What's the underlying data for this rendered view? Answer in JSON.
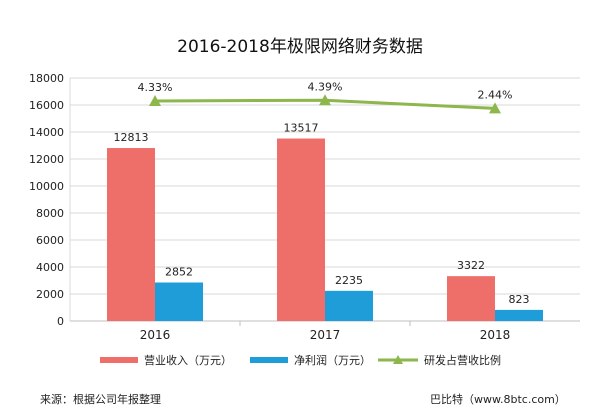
{
  "chart_data": {
    "type": "bar",
    "title": "2016-2018年极限网络财务数据",
    "categories": [
      "2016",
      "2017",
      "2018"
    ],
    "ylim": [
      0,
      18000
    ],
    "yticks": [
      0,
      2000,
      4000,
      6000,
      8000,
      10000,
      12000,
      14000,
      16000,
      18000
    ],
    "series": [
      {
        "name": "营业收入（万元）",
        "type": "bar",
        "color": "#EE6F6A",
        "values": [
          12813,
          13517,
          3322
        ],
        "labels": [
          "12813",
          "13517",
          "3322"
        ]
      },
      {
        "name": "净利润（万元）",
        "type": "bar",
        "color": "#1F9DD9",
        "values": [
          2852,
          2235,
          823
        ],
        "labels": [
          "2852",
          "2235",
          "823"
        ]
      },
      {
        "name": "研发占营收比例",
        "type": "line",
        "color": "#8DB64C",
        "plotted_values": [
          16300,
          16350,
          15750
        ],
        "labels": [
          "4.33%",
          "4.39%",
          "2.44%"
        ]
      }
    ]
  },
  "footer": {
    "source": "来源：根据公司年报整理",
    "credit": "巴比特（www.8btc.com）"
  }
}
